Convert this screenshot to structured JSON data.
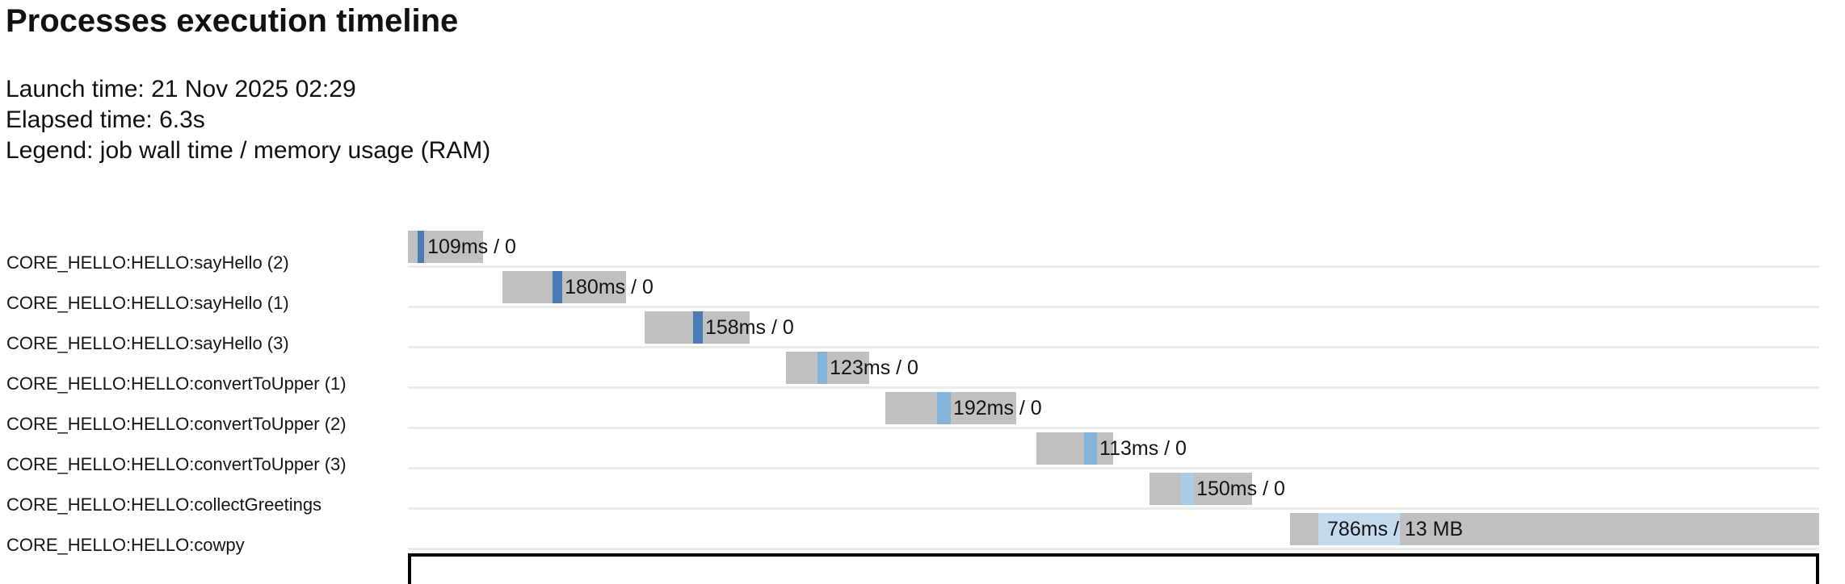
{
  "page": {
    "title": "Processes execution timeline",
    "meta_lines": [
      "Launch time: 21 Nov 2025 02:29",
      "Elapsed time: 6.3s",
      "Legend: job wall time / memory usage (RAM)"
    ]
  },
  "chart_data": {
    "type": "gantt",
    "title": "Processes execution timeline",
    "legend": "job wall time / memory usage (RAM)",
    "time_unit": "ms",
    "xlim": [
      0,
      6300
    ],
    "grid": "row-separator-lines",
    "palette": {
      "gray": "#c0c0c0",
      "sayHello": "#4a7cb3",
      "convertToUpper": "#85b4da",
      "collectGreetings": "#a8cbe6",
      "cowpy": "#c6daee"
    },
    "rows": [
      {
        "label": "CORE_HELLO:HELLO:sayHello (2)",
        "group": "sayHello",
        "bar_label": "109ms / 0",
        "label_t": 87,
        "segments": [
          {
            "t0": 0,
            "t1": 43,
            "kind": "gray"
          },
          {
            "t0": 43,
            "t1": 72,
            "kind": "run"
          },
          {
            "t0": 72,
            "t1": 335,
            "kind": "gray"
          }
        ]
      },
      {
        "label": "CORE_HELLO:HELLO:sayHello (1)",
        "group": "sayHello",
        "bar_label": "180ms / 0",
        "label_t": 700,
        "segments": [
          {
            "t0": 422,
            "t1": 646,
            "kind": "gray"
          },
          {
            "t0": 646,
            "t1": 689,
            "kind": "run"
          },
          {
            "t0": 689,
            "t1": 974,
            "kind": "gray"
          }
        ]
      },
      {
        "label": "CORE_HELLO:HELLO:sayHello (3)",
        "group": "sayHello",
        "bar_label": "158ms / 0",
        "label_t": 1327,
        "segments": [
          {
            "t0": 1057,
            "t1": 1273,
            "kind": "gray"
          },
          {
            "t0": 1273,
            "t1": 1316,
            "kind": "run"
          },
          {
            "t0": 1316,
            "t1": 1525,
            "kind": "gray"
          }
        ]
      },
      {
        "label": "CORE_HELLO:HELLO:convertToUpper (1)",
        "group": "convertToUpper",
        "bar_label": "123ms / 0",
        "label_t": 1883,
        "segments": [
          {
            "t0": 1688,
            "t1": 1828,
            "kind": "gray"
          },
          {
            "t0": 1828,
            "t1": 1872,
            "kind": "run"
          },
          {
            "t0": 1872,
            "t1": 2059,
            "kind": "gray"
          }
        ]
      },
      {
        "label": "CORE_HELLO:HELLO:convertToUpper (2)",
        "group": "convertToUpper",
        "bar_label": "192ms / 0",
        "label_t": 2434,
        "segments": [
          {
            "t0": 2131,
            "t1": 2362,
            "kind": "gray"
          },
          {
            "t0": 2362,
            "t1": 2423,
            "kind": "run"
          },
          {
            "t0": 2423,
            "t1": 2716,
            "kind": "gray"
          }
        ]
      },
      {
        "label": "CORE_HELLO:HELLO:convertToUpper (3)",
        "group": "convertToUpper",
        "bar_label": "113ms / 0",
        "label_t": 3087,
        "segments": [
          {
            "t0": 2805,
            "t1": 3018,
            "kind": "gray"
          },
          {
            "t0": 3018,
            "t1": 3076,
            "kind": "run"
          },
          {
            "t0": 3076,
            "t1": 3148,
            "kind": "gray"
          }
        ]
      },
      {
        "label": "CORE_HELLO:HELLO:collectGreetings",
        "group": "collectGreetings",
        "bar_label": "150ms / 0",
        "label_t": 3520,
        "segments": [
          {
            "t0": 3310,
            "t1": 3451,
            "kind": "gray"
          },
          {
            "t0": 3451,
            "t1": 3509,
            "kind": "run"
          },
          {
            "t0": 3509,
            "t1": 3768,
            "kind": "gray"
          }
        ]
      },
      {
        "label": "CORE_HELLO:HELLO:cowpy",
        "group": "cowpy",
        "bar_label": "786ms / 13 MB",
        "label_t": 4104,
        "segments": [
          {
            "t0": 3938,
            "t1": 4064,
            "kind": "gray"
          },
          {
            "t0": 4064,
            "t1": 4428,
            "kind": "run"
          },
          {
            "t0": 4428,
            "t1": 6300,
            "kind": "gray"
          }
        ]
      }
    ]
  }
}
